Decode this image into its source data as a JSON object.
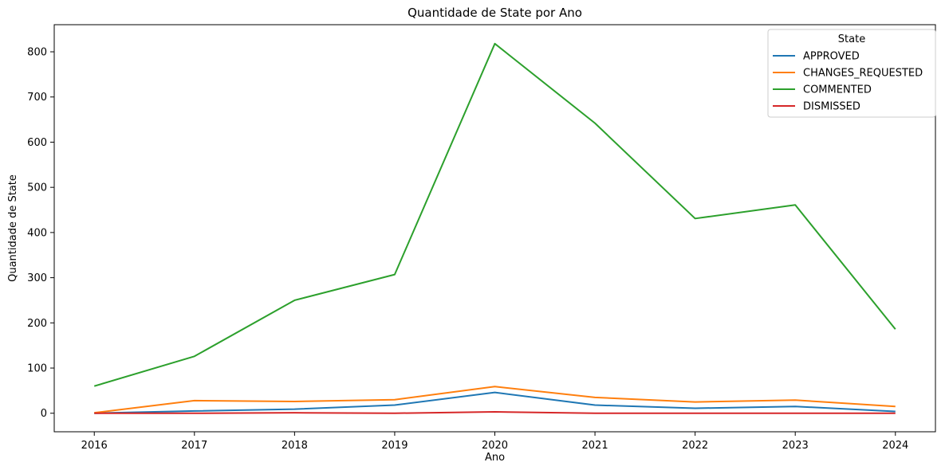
{
  "chart_data": {
    "type": "line",
    "title": "Quantidade de State por Ano",
    "xlabel": "Ano",
    "ylabel": "Quantidade de State",
    "x": [
      2016,
      2017,
      2018,
      2019,
      2020,
      2021,
      2022,
      2023,
      2024
    ],
    "xlim": [
      2015.6,
      2024.4
    ],
    "ylim": [
      -41,
      860
    ],
    "yticks": [
      0,
      100,
      200,
      300,
      400,
      500,
      600,
      700,
      800
    ],
    "grid": false,
    "legend": {
      "title": "State",
      "position": "top-right"
    },
    "series": [
      {
        "name": "APPROVED",
        "color": "#1f77b4",
        "values": [
          0,
          5,
          9,
          18,
          46,
          18,
          11,
          15,
          4
        ]
      },
      {
        "name": "CHANGES_REQUESTED",
        "color": "#ff7f0e",
        "values": [
          1,
          28,
          26,
          30,
          59,
          35,
          25,
          29,
          15
        ]
      },
      {
        "name": "COMMENTED",
        "color": "#2ca02c",
        "values": [
          60,
          126,
          250,
          307,
          818,
          642,
          431,
          461,
          186
        ]
      },
      {
        "name": "DISMISSED",
        "color": "#d62728",
        "values": [
          0,
          0,
          1,
          0,
          3,
          0,
          0,
          0,
          0
        ]
      }
    ]
  }
}
